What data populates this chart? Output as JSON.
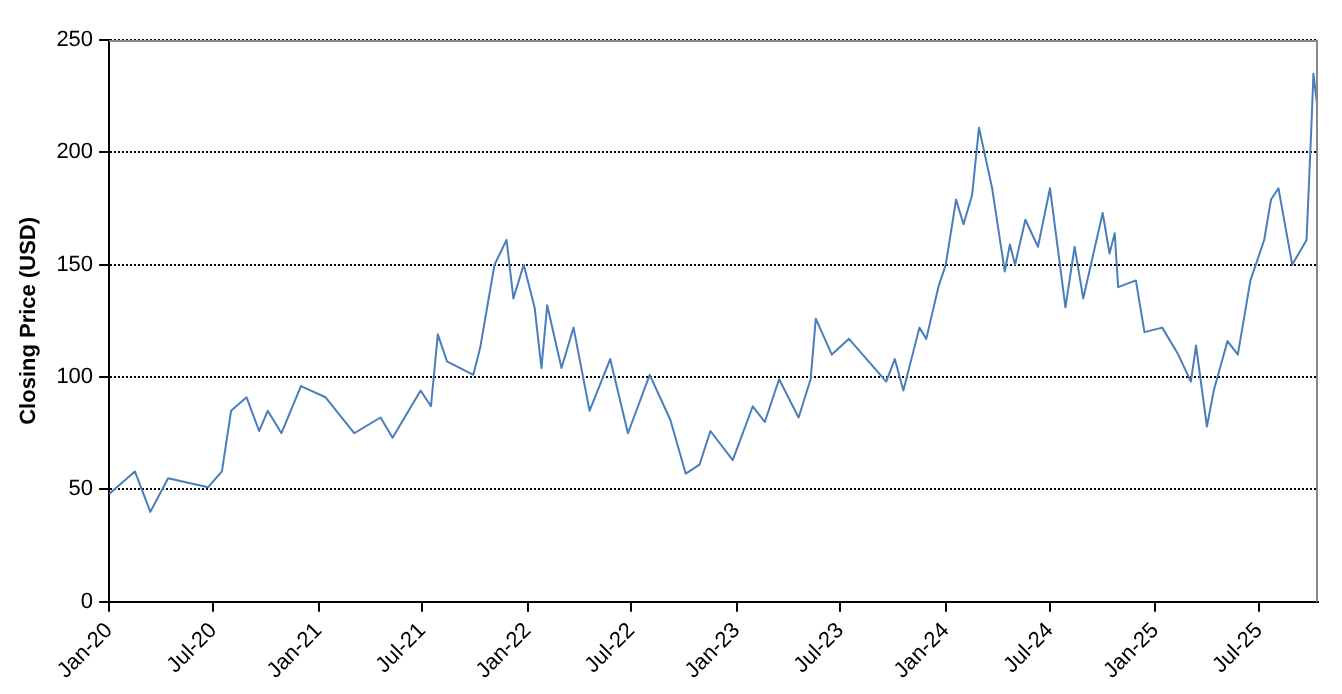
{
  "chart_data": {
    "type": "line",
    "ylabel": "Closing Price (USD)",
    "grid": "y",
    "marker": "none",
    "line_style": "solid",
    "xlim": [
      "2020-01-01",
      "2025-10-12"
    ],
    "xticks": [
      {
        "value": "2020-01-01",
        "label": "Jan-20"
      },
      {
        "value": "2020-07-01",
        "label": "Jul-20"
      },
      {
        "value": "2021-01-01",
        "label": "Jan-21"
      },
      {
        "value": "2021-07-01",
        "label": "Jul-21"
      },
      {
        "value": "2022-01-01",
        "label": "Jan-22"
      },
      {
        "value": "2022-07-01",
        "label": "Jul-22"
      },
      {
        "value": "2023-01-01",
        "label": "Jan-23"
      },
      {
        "value": "2023-07-01",
        "label": "Jul-23"
      },
      {
        "value": "2024-01-01",
        "label": "Jan-24"
      },
      {
        "value": "2024-07-01",
        "label": "Jul-24"
      },
      {
        "value": "2025-01-01",
        "label": "Jan-25"
      },
      {
        "value": "2025-07-01",
        "label": "Jul-25"
      }
    ],
    "ylim": [
      0,
      250
    ],
    "yticks": [
      0,
      50,
      100,
      150,
      200,
      250
    ],
    "x": [
      "2020-01-01",
      "2020-02-15",
      "2020-03-13",
      "2020-04-13",
      "2020-06-22",
      "2020-07-16",
      "2020-08-01",
      "2020-08-28",
      "2020-09-19",
      "2020-10-04",
      "2020-10-28",
      "2020-12-01",
      "2021-01-13",
      "2021-03-04",
      "2021-04-19",
      "2021-05-10",
      "2021-06-28",
      "2021-07-16",
      "2021-07-28",
      "2021-08-13",
      "2021-09-28",
      "2021-10-10",
      "2021-11-04",
      "2021-11-25",
      "2021-12-07",
      "2021-12-25",
      "2022-01-13",
      "2022-01-25",
      "2022-02-04",
      "2022-03-01",
      "2022-03-22",
      "2022-04-19",
      "2022-05-25",
      "2022-06-25",
      "2022-08-02",
      "2022-09-07",
      "2022-10-04",
      "2022-10-28",
      "2022-11-16",
      "2022-12-25",
      "2023-01-29",
      "2023-02-19",
      "2023-03-16",
      "2023-04-19",
      "2023-05-10",
      "2023-05-19",
      "2023-06-16",
      "2023-07-16",
      "2023-09-19",
      "2023-10-04",
      "2023-10-19",
      "2023-11-16",
      "2023-11-28",
      "2023-12-19",
      "2024-01-01",
      "2024-01-19",
      "2024-02-01",
      "2024-02-16",
      "2024-02-28",
      "2024-03-22",
      "2024-04-13",
      "2024-04-22",
      "2024-05-01",
      "2024-05-19",
      "2024-06-10",
      "2024-07-01",
      "2024-07-28",
      "2024-08-13",
      "2024-08-28",
      "2024-10-01",
      "2024-10-13",
      "2024-10-22",
      "2024-10-28",
      "2024-11-28",
      "2024-12-13",
      "2025-01-13",
      "2025-02-10",
      "2025-03-04",
      "2025-03-13",
      "2025-04-01",
      "2025-04-13",
      "2025-05-07",
      "2025-05-25",
      "2025-06-16",
      "2025-07-10",
      "2025-07-22",
      "2025-08-04",
      "2025-08-28",
      "2025-09-22",
      "2025-10-01",
      "2025-10-04",
      "2025-10-10"
    ],
    "series": [
      {
        "color": "#4a7ebb",
        "values": [
          48,
          58,
          40,
          55,
          51,
          58,
          85,
          91,
          76,
          85,
          75,
          96,
          91,
          75,
          82,
          73,
          94,
          87,
          119,
          107,
          101,
          113,
          150,
          161,
          135,
          150,
          131,
          104,
          132,
          104,
          122,
          85,
          108,
          75,
          101,
          81,
          57,
          61,
          76,
          63,
          87,
          80,
          99,
          82,
          99,
          126,
          110,
          117,
          98,
          108,
          94,
          122,
          117,
          140,
          150,
          179,
          168,
          181,
          211,
          184,
          147,
          159,
          150,
          170,
          158,
          184,
          131,
          158,
          135,
          173,
          155,
          164,
          140,
          143,
          120,
          122,
          110,
          98,
          114,
          78,
          94,
          116,
          110,
          143,
          161,
          179,
          184,
          150,
          161,
          215,
          235,
          222
        ]
      }
    ]
  }
}
